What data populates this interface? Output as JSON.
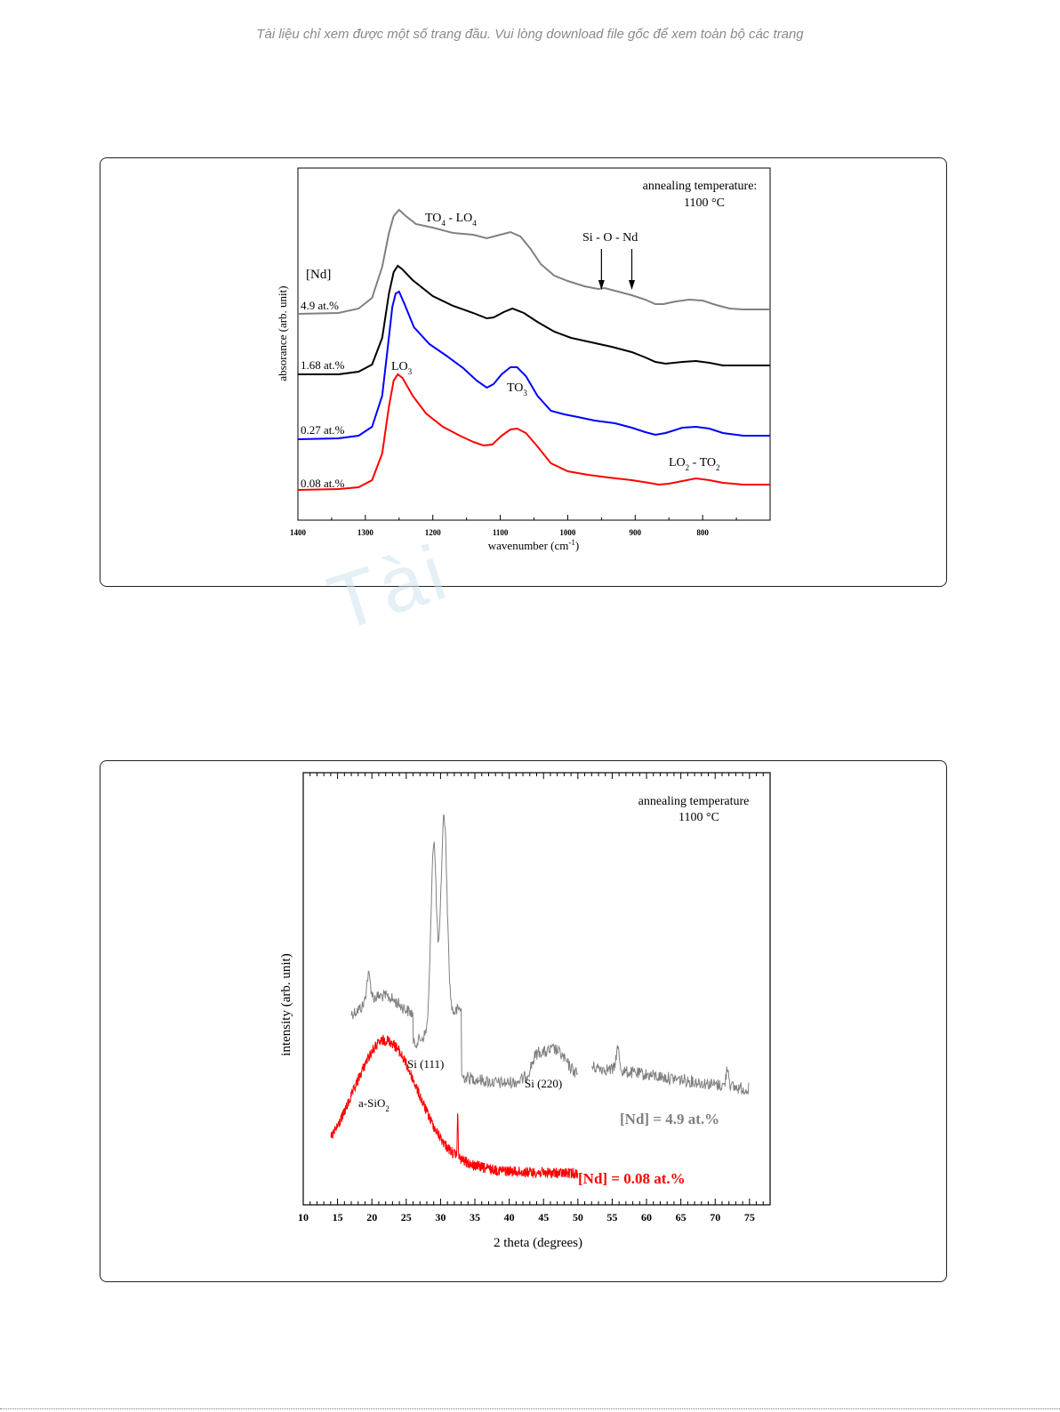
{
  "notice": "Tài liệu chỉ xem được một số trang đầu. Vui lòng download file gốc để xem toàn bộ các trang",
  "watermark": "Tài",
  "chart_data": [
    {
      "type": "line",
      "xlabel": "wavenumber (cm",
      "xlabel_sup": "-1",
      "xlabel_end": ")",
      "ylabel": "absorance (arb. unit)",
      "xlim": [
        1400,
        700
      ],
      "x_reversed": true,
      "x_ticks": [
        1400,
        1300,
        1200,
        1100,
        1000,
        900,
        800
      ],
      "legend_title": "[Nd]",
      "annotation_title": [
        "annealing temperature:",
        "1100 °C"
      ],
      "labels": [
        {
          "main": "TO",
          "sub": "4",
          "mid": " - LO",
          "sub2": "4"
        },
        {
          "main": "Si - O - Nd"
        },
        {
          "main": "LO",
          "sub": "3"
        },
        {
          "main": "TO",
          "sub": "3"
        },
        {
          "main": "LO",
          "sub": "2",
          "mid": " - TO",
          "sub2": "2"
        }
      ],
      "arrows_x": [
        950,
        905
      ],
      "series": [
        {
          "name": "4.9 at.%",
          "color": "#808080",
          "offset": 340,
          "points": [
            [
              1400,
              353
            ],
            [
              1340,
              352
            ],
            [
              1310,
              347
            ],
            [
              1290,
              335
            ],
            [
              1275,
              300
            ],
            [
              1265,
              262
            ],
            [
              1258,
              243
            ],
            [
              1250,
              236
            ],
            [
              1240,
              243
            ],
            [
              1225,
              252
            ],
            [
              1200,
              256
            ],
            [
              1170,
              262
            ],
            [
              1140,
              264
            ],
            [
              1120,
              268
            ],
            [
              1100,
              264
            ],
            [
              1085,
              261
            ],
            [
              1070,
              266
            ],
            [
              1055,
              280
            ],
            [
              1040,
              297
            ],
            [
              1020,
              310
            ],
            [
              1000,
              316
            ],
            [
              975,
              322
            ],
            [
              955,
              325
            ],
            [
              945,
              324
            ],
            [
              930,
              327
            ],
            [
              905,
              332
            ],
            [
              885,
              337
            ],
            [
              870,
              342
            ],
            [
              858,
              342
            ],
            [
              840,
              339
            ],
            [
              820,
              337
            ],
            [
              800,
              338
            ],
            [
              780,
              343
            ],
            [
              760,
              347
            ],
            [
              740,
              348
            ],
            [
              700,
              348
            ]
          ]
        },
        {
          "name": "1.68 at.%",
          "color": "#000000",
          "offset": 407,
          "points": [
            [
              1400,
              421
            ],
            [
              1340,
              421
            ],
            [
              1310,
              418
            ],
            [
              1290,
              410
            ],
            [
              1275,
              380
            ],
            [
              1265,
              330
            ],
            [
              1258,
              306
            ],
            [
              1252,
              299
            ],
            [
              1245,
              303
            ],
            [
              1230,
              315
            ],
            [
              1200,
              333
            ],
            [
              1170,
              344
            ],
            [
              1140,
              352
            ],
            [
              1120,
              358
            ],
            [
              1110,
              357
            ],
            [
              1095,
              351
            ],
            [
              1082,
              347
            ],
            [
              1065,
              352
            ],
            [
              1045,
              362
            ],
            [
              1020,
              373
            ],
            [
              995,
              380
            ],
            [
              965,
              385
            ],
            [
              935,
              390
            ],
            [
              905,
              396
            ],
            [
              885,
              402
            ],
            [
              870,
              407
            ],
            [
              855,
              409
            ],
            [
              830,
              407
            ],
            [
              810,
              406
            ],
            [
              790,
              408
            ],
            [
              770,
              411
            ],
            [
              740,
              411
            ],
            [
              700,
              411
            ]
          ]
        },
        {
          "name": "0.27 at.%",
          "color": "#0000ff",
          "offset": 480,
          "points": [
            [
              1400,
              494
            ],
            [
              1340,
              493
            ],
            [
              1310,
              490
            ],
            [
              1290,
              480
            ],
            [
              1275,
              445
            ],
            [
              1267,
              392
            ],
            [
              1260,
              345
            ],
            [
              1255,
              330
            ],
            [
              1250,
              328
            ],
            [
              1242,
              342
            ],
            [
              1228,
              368
            ],
            [
              1205,
              387
            ],
            [
              1180,
              400
            ],
            [
              1155,
              414
            ],
            [
              1135,
              428
            ],
            [
              1120,
              436
            ],
            [
              1110,
              432
            ],
            [
              1098,
              421
            ],
            [
              1085,
              413
            ],
            [
              1075,
              413
            ],
            [
              1062,
              423
            ],
            [
              1045,
              445
            ],
            [
              1025,
              462
            ],
            [
              1005,
              466
            ],
            [
              985,
              469
            ],
            [
              960,
              473
            ],
            [
              930,
              476
            ],
            [
              905,
              481
            ],
            [
              885,
              486
            ],
            [
              870,
              489
            ],
            [
              855,
              487
            ],
            [
              830,
              481
            ],
            [
              810,
              480
            ],
            [
              790,
              482
            ],
            [
              770,
              487
            ],
            [
              740,
              490
            ],
            [
              700,
              490
            ]
          ]
        },
        {
          "name": "0.08 at.%",
          "color": "#ff0000",
          "offset": 540,
          "points": [
            [
              1400,
              551
            ],
            [
              1340,
              550
            ],
            [
              1310,
              548
            ],
            [
              1290,
              540
            ],
            [
              1275,
              510
            ],
            [
              1265,
              457
            ],
            [
              1258,
              428
            ],
            [
              1252,
              421
            ],
            [
              1245,
              425
            ],
            [
              1230,
              445
            ],
            [
              1210,
              465
            ],
            [
              1185,
              480
            ],
            [
              1160,
              490
            ],
            [
              1140,
              497
            ],
            [
              1125,
              501
            ],
            [
              1112,
              500
            ],
            [
              1098,
              490
            ],
            [
              1085,
              483
            ],
            [
              1075,
              482
            ],
            [
              1062,
              487
            ],
            [
              1045,
              502
            ],
            [
              1025,
              521
            ],
            [
              1000,
              530
            ],
            [
              970,
              534
            ],
            [
              940,
              537
            ],
            [
              905,
              540
            ],
            [
              880,
              543
            ],
            [
              865,
              545
            ],
            [
              850,
              544
            ],
            [
              830,
              541
            ],
            [
              810,
              538
            ],
            [
              790,
              540
            ],
            [
              770,
              543
            ],
            [
              740,
              545
            ],
            [
              700,
              545
            ]
          ]
        }
      ]
    },
    {
      "type": "line",
      "xlabel": "2 theta (degrees)",
      "ylabel": "intensity (arb. unit)",
      "xlim": [
        10,
        78
      ],
      "x_ticks": [
        10,
        15,
        20,
        25,
        30,
        35,
        40,
        45,
        50,
        55,
        60,
        65,
        70,
        75
      ],
      "annotation_title": [
        "annealing temperature",
        "1100 °C"
      ],
      "peak_labels": [
        {
          "text": "Si (111)"
        },
        {
          "text": "Si (220)"
        },
        {
          "text": "a-SiO",
          "sub": "2"
        }
      ],
      "series": [
        {
          "name": "[Nd] = 4.9 at.%",
          "color": "#808080"
        },
        {
          "name": "[Nd] = 0.08 at.%",
          "color": "#ff0000"
        }
      ]
    }
  ]
}
